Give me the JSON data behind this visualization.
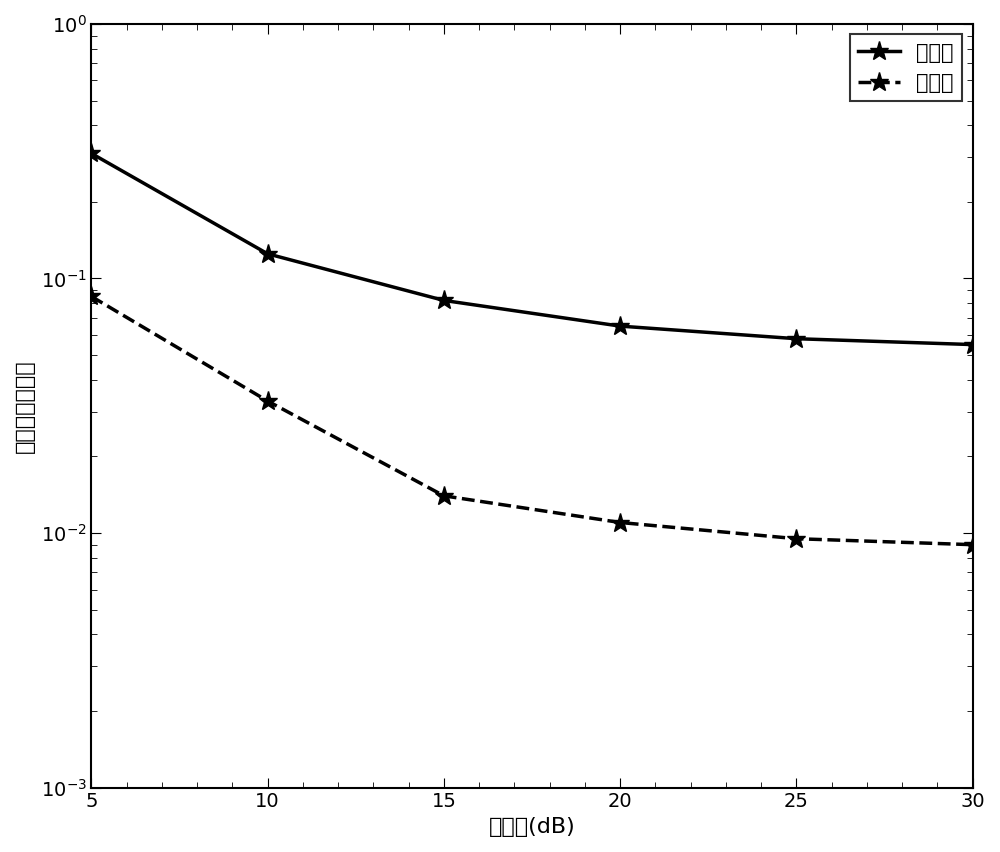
{
  "x": [
    5,
    10,
    15,
    20,
    25,
    30
  ],
  "single_symbol": [
    0.31,
    0.125,
    0.082,
    0.065,
    0.058,
    0.055
  ],
  "multi_symbol": [
    0.085,
    0.033,
    0.014,
    0.011,
    0.0095,
    0.009
  ],
  "xlabel": "信噪比(dB)",
  "ylabel": "归一化均方误差",
  "legend_single": "单符号",
  "legend_multi": "多符号",
  "xlim": [
    5,
    30
  ],
  "ylim": [
    0.001,
    1.0
  ],
  "line_color": "#000000",
  "background_color": "#ffffff",
  "label_fontsize": 16,
  "legend_fontsize": 15,
  "tick_fontsize": 14
}
